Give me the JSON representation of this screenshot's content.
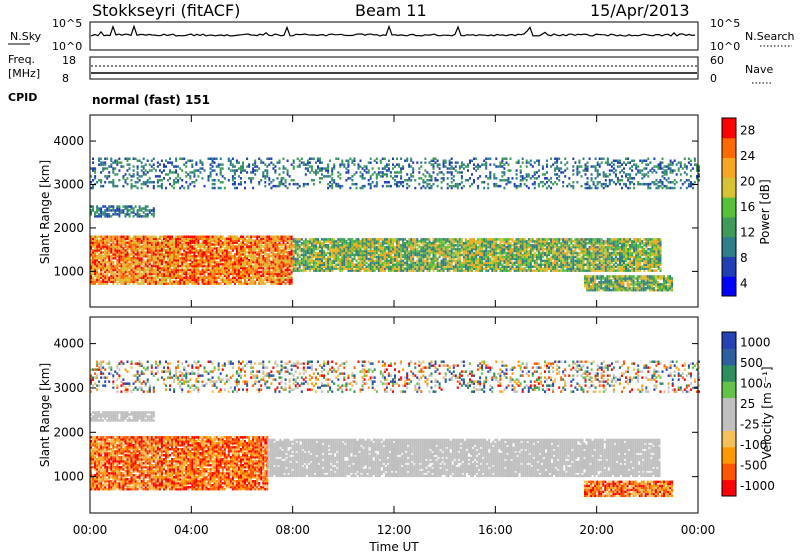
{
  "header": {
    "title": "Stokkseyri (fitACF)",
    "beam": "Beam 11",
    "date": "15/Apr/2013"
  },
  "top_panels": {
    "nsky_label": "N.Sky",
    "nsky_ticks": [
      "10^5",
      "10^0"
    ],
    "nsearch_label": "N.Search",
    "nsearch_ticks": [
      "10^5",
      "10^0"
    ],
    "freq_label_1": "Freq.",
    "freq_label_2": "[MHz]",
    "freq_ticks": [
      "18",
      "8"
    ],
    "nave_label": "Nave",
    "nave_ticks": [
      "60",
      "0"
    ],
    "cpid_label": "CPID",
    "cpid_value": "normal (fast) 151"
  },
  "chart_data": [
    {
      "type": "heatmap",
      "title": "",
      "xlabel": "",
      "ylabel": "Slant Range [km]",
      "x_ticks": [
        "00:00",
        "04:00",
        "08:00",
        "12:00",
        "16:00",
        "20:00",
        "00:00"
      ],
      "xlim": [
        0,
        24
      ],
      "y_ticks": [
        1000,
        2000,
        3000,
        4000
      ],
      "ylim": [
        180,
        4600
      ],
      "colorbar": {
        "label": "Power [dB]",
        "ticks": [
          "28",
          "24",
          "20",
          "16",
          "12",
          "8",
          "4"
        ],
        "range": [
          0,
          32
        ],
        "colors": [
          "#0000ff",
          "#1f3fb4",
          "#2e7d8a",
          "#3e9b5a",
          "#55c23a",
          "#d6c232",
          "#f5a623",
          "#ff6a00",
          "#ff0000"
        ]
      },
      "bands": [
        {
          "t0": 0.0,
          "t1": 8.0,
          "r0": 700,
          "r1": 1800,
          "level": "high"
        },
        {
          "t0": 8.0,
          "t1": 22.5,
          "r0": 1000,
          "r1": 1750,
          "level": "mid"
        },
        {
          "t0": 0.0,
          "t1": 24.0,
          "r0": 2900,
          "r1": 3600,
          "level": "sparse"
        },
        {
          "t0": 19.5,
          "t1": 23.0,
          "r0": 550,
          "r1": 900,
          "level": "mid"
        },
        {
          "t0": 0.0,
          "t1": 2.5,
          "r0": 2250,
          "r1": 2500,
          "level": "low"
        }
      ]
    },
    {
      "type": "heatmap",
      "title": "",
      "xlabel": "Time UT",
      "ylabel": "Slant Range [km]",
      "x_ticks": [
        "00:00",
        "04:00",
        "08:00",
        "12:00",
        "16:00",
        "20:00",
        "00:00"
      ],
      "xlim": [
        0,
        24
      ],
      "y_ticks": [
        1000,
        2000,
        3000,
        4000
      ],
      "ylim": [
        180,
        4600
      ],
      "colorbar": {
        "label": "Velocity [m s⁻¹]",
        "ticks": [
          "1000",
          "500",
          "100",
          "25",
          "-25",
          "-100",
          "-500",
          "-1000"
        ],
        "range": [
          -1000,
          1000
        ],
        "colors": [
          "#ff0000",
          "#ff5500",
          "#ff9900",
          "#f5c05a",
          "#c0c0c0",
          "#c0c0c0",
          "#62c24a",
          "#2d8f5e",
          "#2d5fa0",
          "#2442b4"
        ]
      },
      "bands": [
        {
          "t0": 0.0,
          "t1": 7.0,
          "r0": 700,
          "r1": 1900,
          "level": "negative"
        },
        {
          "t0": 7.0,
          "t1": 22.5,
          "r0": 1000,
          "r1": 1850,
          "level": "ground"
        },
        {
          "t0": 19.5,
          "t1": 23.0,
          "r0": 550,
          "r1": 900,
          "level": "negative"
        },
        {
          "t0": 0.0,
          "t1": 24.0,
          "r0": 2900,
          "r1": 3600,
          "level": "sparse"
        },
        {
          "t0": 0.0,
          "t1": 2.5,
          "r0": 2250,
          "r1": 2450,
          "level": "ground"
        }
      ]
    }
  ],
  "colors": {
    "frame": "#000000",
    "background": "#ffffff"
  }
}
